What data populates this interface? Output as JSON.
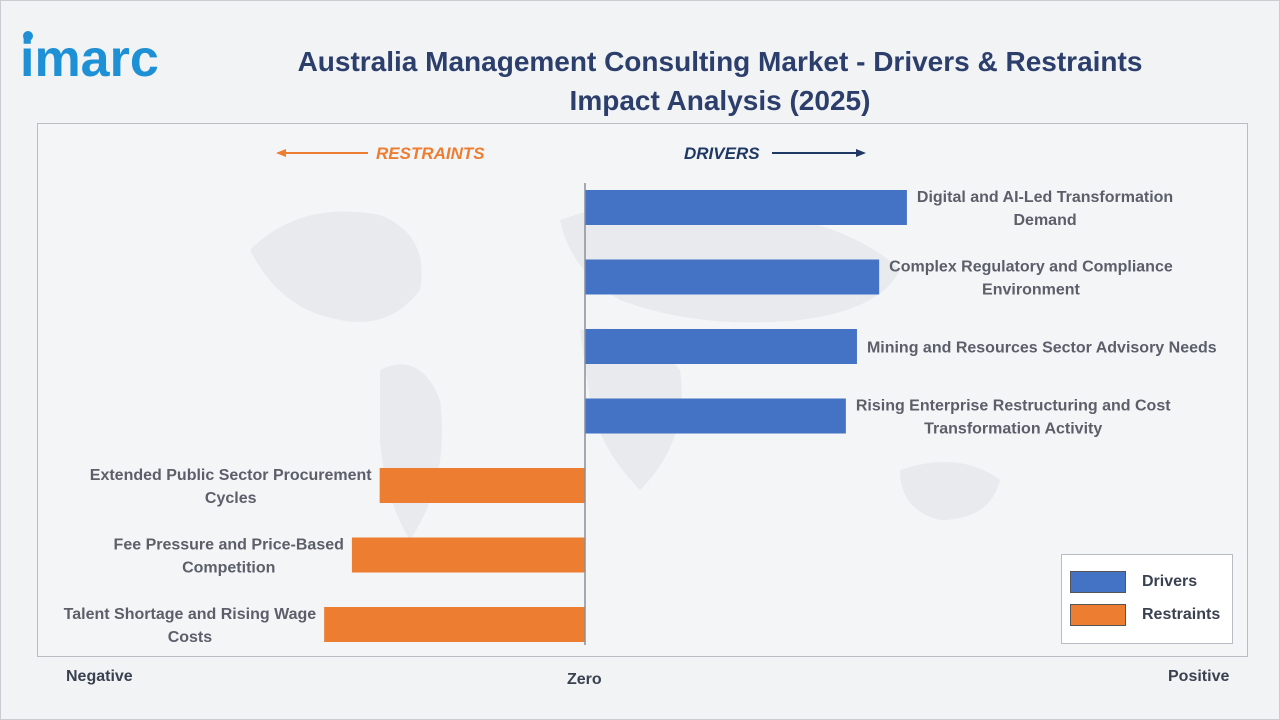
{
  "brand": {
    "logo_text": "imarc"
  },
  "title_lines": [
    "Australia Management Consulting Market - Drivers & Restraints",
    "Impact Analysis (2025)"
  ],
  "direction_labels": {
    "restraints": "RESTRAINTS",
    "drivers": "DRIVERS"
  },
  "axis_labels": {
    "negative": "Negative",
    "zero": "Zero",
    "positive": "Positive"
  },
  "legend": [
    {
      "label": "Drivers",
      "color": "#4472c4"
    },
    {
      "label": "Restraints",
      "color": "#ed7d31"
    }
  ],
  "colors": {
    "drivers": "#4472c4",
    "restraints": "#ed7d31",
    "restraints_text": "#ed7d31",
    "drivers_text": "#1f3864",
    "logo": "#1e90d6"
  },
  "chart_data": {
    "type": "bar",
    "orientation": "horizontal",
    "xlim": [
      -1,
      1
    ],
    "categories": [
      "Digital and AI-Led Transformation Demand",
      "Complex Regulatory and Compliance Environment",
      "Mining and Resources Sector Advisory Needs",
      "Rising Enterprise Restructuring and Cost Transformation Activity",
      "Extended Public Sector Procurement Cycles",
      "Fee Pressure and Price-Based Competition",
      "Talent Shortage and Rising Wage Costs"
    ],
    "label_lines": [
      [
        "Digital and AI-Led Transformation",
        "Demand"
      ],
      [
        "Complex Regulatory and Compliance",
        "Environment"
      ],
      [
        "Mining and Resources Sector Advisory Needs"
      ],
      [
        "Rising Enterprise Restructuring and Cost",
        "Transformation Activity"
      ],
      [
        "Extended Public Sector Procurement",
        "Cycles"
      ],
      [
        "Fee Pressure and Price-Based",
        "Competition"
      ],
      [
        "Talent Shortage and Rising Wage",
        "Costs"
      ]
    ],
    "series": [
      {
        "name": "Drivers",
        "values": [
          0.58,
          0.53,
          0.49,
          0.47,
          null,
          null,
          null
        ]
      },
      {
        "name": "Restraints",
        "values": [
          null,
          null,
          null,
          null,
          -0.37,
          -0.42,
          -0.47
        ]
      }
    ],
    "grid": false,
    "legend_position": "bottom-right"
  }
}
